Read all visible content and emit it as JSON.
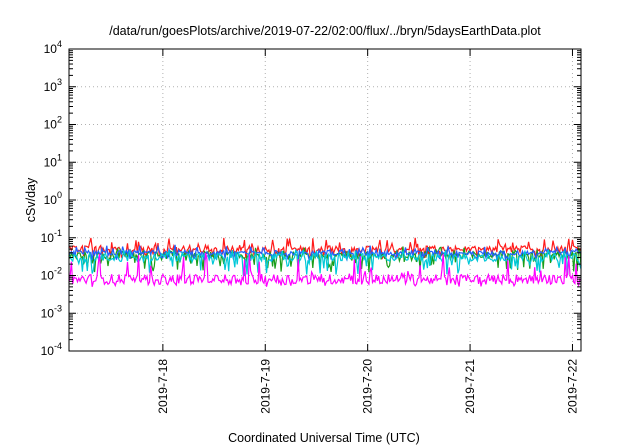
{
  "chart_data": {
    "type": "line",
    "title": "/data/run/goesPlots/archive/2019-07-22/02:00/flux/../bryn/5daysEarthData.plot",
    "xlabel": "Coordinated Universal Time (UTC)",
    "ylabel": "cSv/day",
    "y_scale": "log",
    "ylim": [
      0.0001,
      10000
    ],
    "y_ticks": [
      {
        "value": 0.0001,
        "base": "10",
        "exp": "-4"
      },
      {
        "value": 0.001,
        "base": "10",
        "exp": "-3"
      },
      {
        "value": 0.01,
        "base": "10",
        "exp": "-2"
      },
      {
        "value": 0.1,
        "base": "10",
        "exp": "-1"
      },
      {
        "value": 1,
        "base": "10",
        "exp": "0"
      },
      {
        "value": 10,
        "base": "10",
        "exp": "1"
      },
      {
        "value": 100,
        "base": "10",
        "exp": "2"
      },
      {
        "value": 1000,
        "base": "10",
        "exp": "3"
      },
      {
        "value": 10000,
        "base": "10",
        "exp": "4"
      }
    ],
    "xlim": [
      "2019-07-17 02:00",
      "2019-07-22 02:00"
    ],
    "x_ticks": [
      "2019-7-18",
      "2019-7-19",
      "2019-7-20",
      "2019-7-21",
      "2019-7-22"
    ],
    "grid": true,
    "legend": "none",
    "series": [
      {
        "color": "#ff1a1a",
        "x": [
          "2019-07-17 02:00",
          "2019-07-22 02:00"
        ],
        "values": [
          0.05,
          0.05
        ],
        "y_range": [
          0.028,
          0.1
        ]
      },
      {
        "color": "#1a9e1a",
        "x": [
          "2019-07-17 02:00",
          "2019-07-22 02:00"
        ],
        "values": [
          0.035,
          0.035
        ],
        "y_range": [
          0.012,
          0.06
        ]
      },
      {
        "color": "#2060ff",
        "x": [
          "2019-07-17 02:00",
          "2019-07-22 02:00"
        ],
        "values": [
          0.04,
          0.04
        ],
        "y_range": [
          0.025,
          0.065
        ]
      },
      {
        "color": "#00c8d8",
        "x": [
          "2019-07-17 02:00",
          "2019-07-22 02:00"
        ],
        "values": [
          0.03,
          0.03
        ],
        "y_range": [
          0.01,
          0.05
        ]
      },
      {
        "color": "#ff00ff",
        "x": [
          "2019-07-17 02:00",
          "2019-07-22 02:00"
        ],
        "values": [
          0.008,
          0.008
        ],
        "y_range": [
          0.005,
          0.04
        ]
      }
    ]
  }
}
